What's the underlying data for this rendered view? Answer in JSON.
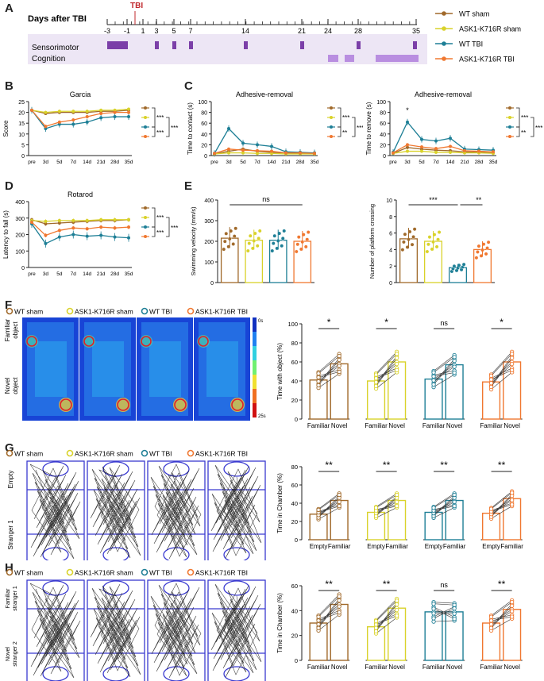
{
  "panels": {
    "A": "A",
    "B": "B",
    "C": "C",
    "D": "D",
    "E": "E",
    "F": "F",
    "G": "G",
    "H": "H"
  },
  "colors": {
    "wt_sham": "#a0692a",
    "ask_sham": "#d9d22a",
    "wt_tbi": "#1e7f96",
    "ask_tbi": "#f07830",
    "timeline_bar": "#7b3fa8",
    "cognition_bar": "#b98ee0",
    "band": "#ede6f5",
    "tbi_red": "#c0282d"
  },
  "groups": [
    "WT sham",
    "ASK1-K716R sham",
    "WT TBI",
    "ASK1-K716R TBI"
  ],
  "timeline": {
    "title": "Days after TBI",
    "tbi_label": "TBI",
    "ticks": [
      "-3",
      "-1",
      "1",
      "3",
      "5",
      "7",
      "14",
      "21",
      "24",
      "28",
      "35"
    ],
    "rows": [
      "Sensorimotor",
      "Cognition"
    ]
  },
  "sig": {
    "three": "***",
    "two": "**",
    "one": "*",
    "ns": "ns"
  },
  "chart_data": [
    {
      "id": "garcia",
      "type": "line",
      "title": "Garcia",
      "ylabel": "Score",
      "ylim": [
        0,
        25
      ],
      "yticks": [
        "0",
        "5",
        "10",
        "15",
        "20",
        "25"
      ],
      "categories": [
        "pre",
        "3d",
        "5d",
        "7d",
        "14d",
        "21d",
        "28d",
        "35d"
      ],
      "series": [
        {
          "name": "WT sham",
          "values": [
            21,
            19.5,
            20,
            20,
            20,
            20.5,
            20.5,
            21
          ]
        },
        {
          "name": "ASK1-K716R sham",
          "values": [
            21,
            20,
            20.5,
            20.5,
            20.5,
            21,
            21,
            21.5
          ]
        },
        {
          "name": "WT TBI",
          "values": [
            21,
            12.5,
            14.5,
            14.5,
            15.5,
            17.5,
            18,
            18
          ]
        },
        {
          "name": "ASK1-K716R TBI",
          "values": [
            21,
            13.5,
            15.5,
            16.5,
            18,
            19.5,
            20,
            20
          ]
        }
      ]
    },
    {
      "id": "adh_contact",
      "type": "line",
      "title": "Adhesive-removal",
      "ylabel": "Time to contact (s)",
      "ylim": [
        0,
        100
      ],
      "yticks": [
        "0",
        "20",
        "40",
        "60",
        "80",
        "100"
      ],
      "categories": [
        "pre",
        "3d",
        "5d",
        "7d",
        "14d",
        "21d",
        "28d",
        "35d"
      ],
      "series": [
        {
          "name": "WT sham",
          "values": [
            3,
            8,
            12,
            8,
            6,
            5,
            4,
            3
          ]
        },
        {
          "name": "ASK1-K716R sham",
          "values": [
            3,
            5,
            5,
            4,
            4,
            3,
            3,
            3
          ]
        },
        {
          "name": "WT TBI",
          "values": [
            4,
            50,
            23,
            20,
            17,
            7,
            6,
            5
          ]
        },
        {
          "name": "ASK1-K716R TBI",
          "values": [
            4,
            12,
            10,
            9,
            8,
            5,
            5,
            4
          ]
        }
      ]
    },
    {
      "id": "adh_remove",
      "type": "line",
      "title": "Adhesive-removal",
      "ylabel": "Time to remove (s)",
      "ylim": [
        0,
        100
      ],
      "yticks": [
        "0",
        "20",
        "40",
        "60",
        "80",
        "100"
      ],
      "categories": [
        "pre",
        "3d",
        "5d",
        "7d",
        "14d",
        "21d",
        "28d",
        "35d"
      ],
      "annotation": "*",
      "series": [
        {
          "name": "WT sham",
          "values": [
            4,
            15,
            12,
            10,
            9,
            7,
            6,
            5
          ]
        },
        {
          "name": "ASK1-K716R sham",
          "values": [
            4,
            8,
            8,
            6,
            6,
            5,
            5,
            4
          ]
        },
        {
          "name": "WT TBI",
          "values": [
            6,
            62,
            30,
            27,
            32,
            12,
            11,
            10
          ]
        },
        {
          "name": "ASK1-K716R TBI",
          "values": [
            5,
            20,
            16,
            13,
            17,
            9,
            8,
            7
          ]
        }
      ]
    },
    {
      "id": "rotarod",
      "type": "line",
      "title": "Rotarod",
      "ylabel": "Latency to fall (s)",
      "ylim": [
        0,
        400
      ],
      "yticks": [
        "0",
        "100",
        "200",
        "300",
        "400"
      ],
      "categories": [
        "pre",
        "3d",
        "5d",
        "7d",
        "14d",
        "21d",
        "28d",
        "35d"
      ],
      "series": [
        {
          "name": "WT sham",
          "values": [
            290,
            265,
            270,
            275,
            280,
            285,
            285,
            290
          ]
        },
        {
          "name": "ASK1-K716R sham",
          "values": [
            285,
            280,
            285,
            285,
            285,
            290,
            290,
            290
          ]
        },
        {
          "name": "WT TBI",
          "values": [
            265,
            145,
            185,
            200,
            190,
            195,
            185,
            180
          ]
        },
        {
          "name": "ASK1-K716R TBI",
          "values": [
            275,
            195,
            225,
            240,
            235,
            245,
            240,
            245
          ]
        }
      ]
    },
    {
      "id": "swim",
      "type": "bar",
      "ylabel": "Swimming velocity (mm/s)",
      "ylim": [
        0,
        400
      ],
      "yticks": [
        "0",
        "100",
        "200",
        "300",
        "400"
      ],
      "categories": [
        "WT sham",
        "ASK1-K716R sham",
        "WT TBI",
        "ASK1-K716R TBI"
      ],
      "values": [
        215,
        205,
        205,
        200
      ],
      "annotation": "ns"
    },
    {
      "id": "platform",
      "type": "bar",
      "ylabel": "Number of platform crossing",
      "ylim": [
        0,
        10
      ],
      "yticks": [
        "0",
        "2",
        "4",
        "6",
        "8",
        "10"
      ],
      "categories": [
        "WT sham",
        "ASK1-K716R sham",
        "WT TBI",
        "ASK1-K716R TBI"
      ],
      "values": [
        5.3,
        5,
        1.8,
        4
      ],
      "annotation_left": "***",
      "annotation_right": "**"
    },
    {
      "id": "novel_object",
      "type": "bar",
      "ylabel": "Time with object (%)",
      "ylim": [
        0,
        100
      ],
      "yticks": [
        "0",
        "20",
        "40",
        "60",
        "80",
        "100"
      ],
      "pair_labels": [
        "Familiar",
        "Novel"
      ],
      "values": [
        [
          41,
          58
        ],
        [
          40,
          60
        ],
        [
          42,
          57
        ],
        [
          39,
          60
        ]
      ],
      "sig": [
        "*",
        "*",
        "ns",
        "*"
      ]
    },
    {
      "id": "sociability",
      "type": "bar",
      "ylabel": "Time in Chamber (%)",
      "ylim": [
        0,
        80
      ],
      "yticks": [
        "0",
        "20",
        "40",
        "60",
        "80"
      ],
      "pair_labels": [
        "Empty",
        "Familiar"
      ],
      "values": [
        [
          28,
          43
        ],
        [
          30,
          43
        ],
        [
          30,
          43
        ],
        [
          29,
          45
        ]
      ],
      "sig": [
        "**",
        "**",
        "**",
        "**"
      ]
    },
    {
      "id": "social_novelty",
      "type": "bar",
      "ylabel": "Time in Chamber (%)",
      "ylim": [
        0,
        60
      ],
      "yticks": [
        "0",
        "20",
        "40",
        "60"
      ],
      "pair_labels": [
        "Familiar",
        "Novel"
      ],
      "values": [
        [
          30,
          45
        ],
        [
          27,
          42
        ],
        [
          39,
          39
        ],
        [
          30,
          41
        ]
      ],
      "sig": [
        "**",
        "**",
        "ns",
        "**"
      ]
    }
  ],
  "maps": {
    "F_rows": [
      "Familiar object",
      "Novel object"
    ],
    "G_rows": [
      "Empty",
      "Stranger 1"
    ],
    "H_rows": [
      "Familiar stranger 1",
      "Novel stranger 2"
    ],
    "scale_top": "0s",
    "scale_bottom": "25s"
  }
}
